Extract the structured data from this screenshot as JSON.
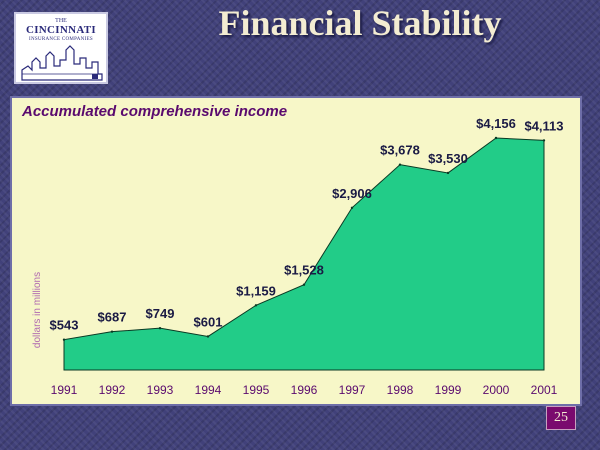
{
  "slide": {
    "title": "Financial Stability",
    "page_number": "25"
  },
  "logo": {
    "the": "THE",
    "name": "CINCINNATI",
    "subtitle": "INSURANCE COMPANIES"
  },
  "colors": {
    "fill": "#22cc88",
    "stroke": "#0a3a24",
    "panel": "#f7f7c8",
    "title_text": "#5a0a6e",
    "value_text": "#1a1a44",
    "axis_text": "#5a0a6e",
    "ylabel_text": "#b06ab0",
    "background": "#41417a"
  },
  "chart_data": {
    "type": "area",
    "title": "Accumulated comprehensive income",
    "ylabel": "dollars in millions",
    "xlabel": "",
    "categories": [
      "1991",
      "1992",
      "1993",
      "1994",
      "1995",
      "1996",
      "1997",
      "1998",
      "1999",
      "2000",
      "2001"
    ],
    "values": [
      543,
      687,
      749,
      601,
      1159,
      1528,
      2906,
      3678,
      3530,
      4156,
      4113
    ],
    "labels": [
      "$543",
      "$687",
      "$749",
      "$601",
      "$1,159",
      "$1,528",
      "$2,906",
      "$3,678",
      "$3,530",
      "$4,156",
      "$4,113"
    ],
    "grid": false,
    "legend": "none"
  }
}
